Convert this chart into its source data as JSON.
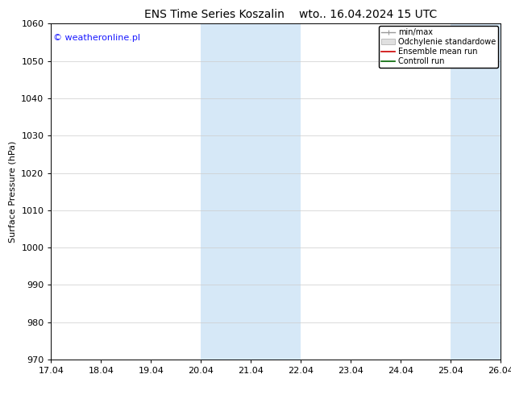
{
  "title_left": "ENS Time Series Koszalin",
  "title_right": "wto.. 16.04.2024 15 UTC",
  "ylabel": "Surface Pressure (hPa)",
  "ylim": [
    970,
    1060
  ],
  "yticks": [
    970,
    980,
    990,
    1000,
    1010,
    1020,
    1030,
    1040,
    1050,
    1060
  ],
  "x_tick_labels": [
    "17.04",
    "18.04",
    "19.04",
    "20.04",
    "21.04",
    "22.04",
    "23.04",
    "24.04",
    "25.04",
    "26.04"
  ],
  "x_tick_days": [
    17,
    18,
    19,
    20,
    21,
    22,
    23,
    24,
    25,
    26
  ],
  "x_start_day": 17,
  "x_end_day": 26,
  "shaded_bands": [
    {
      "x_start_day": 20,
      "x_end_day": 22
    },
    {
      "x_start_day": 25,
      "x_end_day": 26
    }
  ],
  "band_color": "#d6e8f7",
  "watermark": "© weatheronline.pl",
  "watermark_color": "#1a1aff",
  "legend_labels": [
    "min/max",
    "Odchylenie standardowe",
    "Ensemble mean run",
    "Controll run"
  ],
  "legend_colors": [
    "#999999",
    "#cccccc",
    "#cc0000",
    "#006600"
  ],
  "background_color": "#ffffff",
  "plot_bg_color": "#ffffff",
  "title_fontsize": 10,
  "ylabel_fontsize": 8,
  "tick_fontsize": 8,
  "legend_fontsize": 7,
  "watermark_fontsize": 8
}
